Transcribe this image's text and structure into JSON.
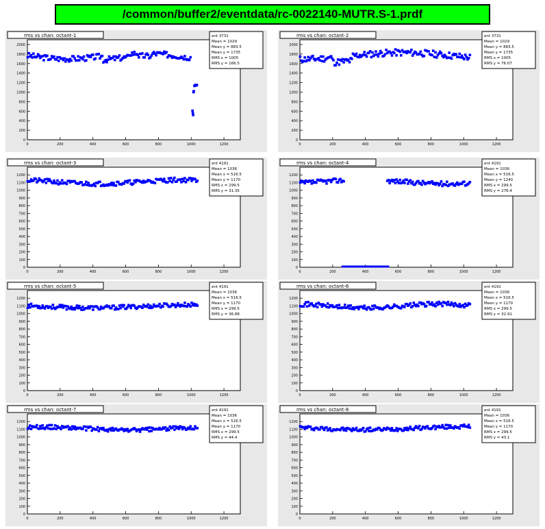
{
  "window": {
    "title": "/common/buffer2/eventdata/rc-0022140-MUTR.S-1.prdf"
  },
  "theme": {
    "pad_bg": "#e8e8e8",
    "frame_bg": "#ffffff",
    "marker": "#0000ff",
    "title_bg": "#00ff00"
  },
  "chart_data": [
    {
      "type": "scatter",
      "title": "rms vs chan: octant-1",
      "ylim": [
        0,
        2100
      ],
      "xlim": [
        0,
        1300
      ],
      "yticks": [
        0,
        200,
        400,
        600,
        800,
        1000,
        1200,
        1400,
        1600,
        1800,
        2000
      ],
      "xticks": [
        0,
        200,
        400,
        600,
        800,
        1000,
        1200
      ],
      "yticklabels": [
        "0",
        "200",
        "400",
        "600",
        "800",
        "1000",
        "1200",
        "1400",
        "1600",
        "1800",
        "2000"
      ],
      "xticklabels": [
        "0",
        "200",
        "400",
        "600",
        "800",
        "1000",
        "1200"
      ],
      "stats": [
        [
          "ent 3731",
          ""
        ],
        [
          "Mean = 1029",
          ""
        ],
        [
          "Mean y = 883.5",
          ""
        ],
        [
          "Mean y = 1735",
          ""
        ],
        [
          "RMS x = 1005",
          ""
        ],
        [
          "RMS y = 166.5",
          ""
        ]
      ],
      "x_end": 1040,
      "base": 1760,
      "amp": 60,
      "freq": 0.07,
      "noise": 60,
      "seed": 3,
      "dips": [
        [
          460,
          620,
          -80
        ],
        [
          680,
          760,
          -60
        ]
      ],
      "gaps": [
        [
          1000,
          1060
        ]
      ],
      "extra": [
        [
          1020,
          1130
        ],
        [
          1022,
          1140
        ],
        [
          1026,
          1150
        ],
        [
          1030,
          1140
        ],
        [
          1035,
          1150
        ],
        [
          1014,
          1000
        ],
        [
          1016,
          1020
        ],
        [
          1008,
          610
        ],
        [
          1010,
          560
        ],
        [
          1012,
          520
        ]
      ]
    },
    {
      "type": "scatter",
      "title": "rms vs chan: octant-2",
      "ylim": [
        0,
        2100
      ],
      "xlim": [
        0,
        1300
      ],
      "yticks": [
        0,
        200,
        400,
        600,
        800,
        1000,
        1200,
        1400,
        1600,
        1800,
        2000
      ],
      "xticks": [
        0,
        200,
        400,
        600,
        800,
        1000,
        1200
      ],
      "yticklabels": [
        "0",
        "200",
        "400",
        "600",
        "800",
        "1000",
        "1200",
        "1400",
        "1600",
        "1800",
        "2000"
      ],
      "xticklabels": [
        "0",
        "200",
        "400",
        "600",
        "800",
        "1000",
        "1200"
      ],
      "stats": [
        [
          "ent 3731",
          ""
        ],
        [
          "Mean = 1029",
          ""
        ],
        [
          "Mean y = 883.5",
          ""
        ],
        [
          "Mean y = 1735",
          ""
        ],
        [
          "RMS x = 1005",
          ""
        ],
        [
          "RMS y = 76.07",
          ""
        ]
      ],
      "x_end": 1040,
      "base": 1760,
      "amp": 70,
      "freq": 0.05,
      "noise": 70,
      "seed": 11,
      "dips": [
        [
          200,
          320,
          -100
        ]
      ],
      "gaps": [],
      "extra": []
    },
    {
      "type": "scatter",
      "title": "rms vs chan: octant-3",
      "ylim": [
        0,
        1300
      ],
      "xlim": [
        0,
        1300
      ],
      "yticks": [
        0,
        100,
        200,
        300,
        400,
        500,
        600,
        700,
        800,
        900,
        1000,
        1100,
        1200
      ],
      "xticks": [
        0,
        200,
        400,
        600,
        800,
        1000,
        1200
      ],
      "yticklabels": [
        "0",
        "100",
        "200",
        "300",
        "400",
        "500",
        "600",
        "700",
        "800",
        "900",
        "1000",
        "1100",
        "1200"
      ],
      "xticklabels": [
        "0",
        "200",
        "400",
        "600",
        "800",
        "1000",
        "1200"
      ],
      "stats": [
        [
          "ent 4191",
          ""
        ],
        [
          "Mean = 1036",
          ""
        ],
        [
          "Mean x = 516.5",
          ""
        ],
        [
          "Mean y = 1170",
          ""
        ],
        [
          "RMS x = 299.5",
          ""
        ],
        [
          "RMS y = 31.35",
          ""
        ]
      ],
      "x_end": 1040,
      "base": 1110,
      "amp": 25,
      "freq": 0.06,
      "noise": 30,
      "seed": 21,
      "dips": [],
      "gaps": [],
      "extra": []
    },
    {
      "type": "scatter",
      "title": "rms vs chan: octant-4",
      "ylim": [
        0,
        1300
      ],
      "xlim": [
        0,
        1300
      ],
      "yticks": [
        0,
        100,
        200,
        300,
        400,
        500,
        600,
        700,
        800,
        900,
        1000,
        1100,
        1200
      ],
      "xticks": [
        0,
        200,
        400,
        600,
        800,
        1000,
        1200
      ],
      "yticklabels": [
        "0",
        "100",
        "200",
        "300",
        "400",
        "500",
        "600",
        "700",
        "800",
        "900",
        "1000",
        "1100",
        "1200"
      ],
      "xticklabels": [
        "0",
        "200",
        "400",
        "600",
        "800",
        "1000",
        "1200"
      ],
      "stats": [
        [
          "ent 4191",
          ""
        ],
        [
          "Mean = 1036",
          ""
        ],
        [
          "Mean x = 516.5",
          ""
        ],
        [
          "Mean y = 1240",
          ""
        ],
        [
          "RMS x = 299.5",
          ""
        ],
        [
          "RMS y = 276.4",
          ""
        ]
      ],
      "x_end": 1040,
      "base": 1110,
      "amp": 25,
      "freq": 0.06,
      "noise": 30,
      "seed": 37,
      "dips": [],
      "gaps": [
        [
          270,
          530
        ]
      ],
      "zero_range": [
        260,
        540
      ],
      "extra": []
    },
    {
      "type": "scatter",
      "title": "rms vs chan: octant-5",
      "ylim": [
        0,
        1300
      ],
      "xlim": [
        0,
        1300
      ],
      "yticks": [
        0,
        100,
        200,
        300,
        400,
        500,
        600,
        700,
        800,
        900,
        1000,
        1100,
        1200
      ],
      "xticks": [
        0,
        200,
        400,
        600,
        800,
        1000,
        1200
      ],
      "yticklabels": [
        "0",
        "100",
        "200",
        "300",
        "400",
        "500",
        "600",
        "700",
        "800",
        "900",
        "1000",
        "1100",
        "1200"
      ],
      "xticklabels": [
        "0",
        "200",
        "400",
        "600",
        "800",
        "1000",
        "1200"
      ],
      "stats": [
        [
          "ent 4191",
          ""
        ],
        [
          "Mean = 1036",
          ""
        ],
        [
          "Mean x = 516.5",
          ""
        ],
        [
          "Mean y = 1170",
          ""
        ],
        [
          "RMS x = 299.5",
          ""
        ],
        [
          "RMS y = 36.88",
          ""
        ]
      ],
      "x_end": 1040,
      "base": 1095,
      "amp": 20,
      "freq": 0.05,
      "noise": 28,
      "seed": 53,
      "dips": [],
      "gaps": [],
      "extra": []
    },
    {
      "type": "scatter",
      "title": "rms vs chan: octant-6",
      "ylim": [
        0,
        1300
      ],
      "xlim": [
        0,
        1300
      ],
      "yticks": [
        0,
        100,
        200,
        300,
        400,
        500,
        600,
        700,
        800,
        900,
        1000,
        1100,
        1200
      ],
      "xticks": [
        0,
        200,
        400,
        600,
        800,
        1000,
        1200
      ],
      "yticklabels": [
        "0",
        "100",
        "200",
        "300",
        "400",
        "500",
        "600",
        "700",
        "800",
        "900",
        "1000",
        "1100",
        "1200"
      ],
      "xticklabels": [
        "0",
        "200",
        "400",
        "600",
        "800",
        "1000",
        "1200"
      ],
      "stats": [
        [
          "ent 4191",
          ""
        ],
        [
          "Mean = 1036",
          ""
        ],
        [
          "Mean x = 516.5",
          ""
        ],
        [
          "Mean y = 1170",
          ""
        ],
        [
          "RMS x = 299.5",
          ""
        ],
        [
          "RMS y = 32.91",
          ""
        ]
      ],
      "x_end": 1040,
      "base": 1100,
      "amp": 25,
      "freq": 0.07,
      "noise": 30,
      "seed": 71,
      "dips": [],
      "gaps": [],
      "extra": []
    },
    {
      "type": "scatter",
      "title": "rms vs chan: octant-7",
      "ylim": [
        0,
        1300
      ],
      "xlim": [
        0,
        1300
      ],
      "yticks": [
        0,
        100,
        200,
        300,
        400,
        500,
        600,
        700,
        800,
        900,
        1000,
        1100,
        1200
      ],
      "xticks": [
        0,
        200,
        400,
        600,
        800,
        1000,
        1200
      ],
      "yticklabels": [
        "0",
        "100",
        "200",
        "300",
        "400",
        "500",
        "600",
        "700",
        "800",
        "900",
        "1000",
        "1100",
        "1200"
      ],
      "xticklabels": [
        "0",
        "200",
        "400",
        "600",
        "800",
        "1000",
        "1200"
      ],
      "stats": [
        [
          "ent 4191",
          ""
        ],
        [
          "Mean = 1036",
          ""
        ],
        [
          "Mean x = 516.5",
          ""
        ],
        [
          "Mean y = 1170",
          ""
        ],
        [
          "RMS x = 299.5",
          ""
        ],
        [
          "RMS y = 44.4",
          ""
        ]
      ],
      "x_end": 1040,
      "base": 1110,
      "amp": 20,
      "freq": 0.06,
      "noise": 26,
      "seed": 89,
      "dips": [],
      "gaps": [],
      "extra": []
    },
    {
      "type": "scatter",
      "title": "rms vs chan: octant-8",
      "ylim": [
        0,
        1300
      ],
      "xlim": [
        0,
        1300
      ],
      "yticks": [
        0,
        100,
        200,
        300,
        400,
        500,
        600,
        700,
        800,
        900,
        1000,
        1100,
        1200
      ],
      "xticks": [
        0,
        200,
        400,
        600,
        800,
        1000,
        1200
      ],
      "yticklabels": [
        "0",
        "100",
        "200",
        "300",
        "400",
        "500",
        "600",
        "700",
        "800",
        "900",
        "1000",
        "1100",
        "1200"
      ],
      "xticklabels": [
        "0",
        "200",
        "400",
        "600",
        "800",
        "1000",
        "1200"
      ],
      "stats": [
        [
          "ent 4191",
          ""
        ],
        [
          "Mean = 1036",
          ""
        ],
        [
          "Mean x = 516.5",
          ""
        ],
        [
          "Mean y = 1170",
          ""
        ],
        [
          "RMS x = 299.5",
          ""
        ],
        [
          "RMS y = 43.1",
          ""
        ]
      ],
      "x_end": 1040,
      "base": 1115,
      "amp": 20,
      "freq": 0.05,
      "noise": 26,
      "seed": 97,
      "dips": [],
      "gaps": [],
      "extra": []
    }
  ]
}
